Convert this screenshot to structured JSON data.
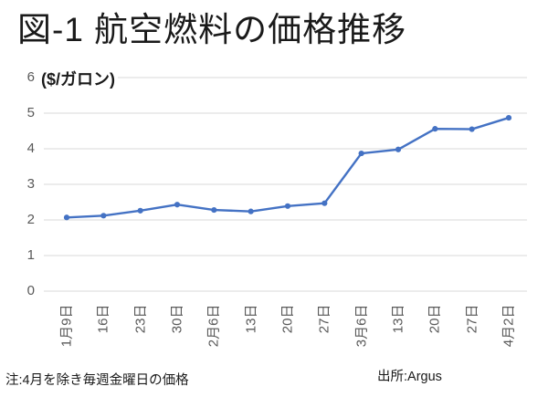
{
  "chart": {
    "title": "図-1 航空燃料の価格推移",
    "unit_label": "($/ガロン)",
    "note": "注:4月を除き毎週金曜日の価格",
    "source": "出所:Argus"
  },
  "chart_data": {
    "type": "line",
    "title": "図-1 航空燃料の価格推移",
    "xlabel": "",
    "ylabel": "($/ガロン)",
    "categories": [
      "1月9日",
      "16日",
      "23日",
      "30日",
      "2月6日",
      "13日",
      "20日",
      "27日",
      "3月6日",
      "13日",
      "20日",
      "27日",
      "4月2日"
    ],
    "values": [
      2.07,
      2.12,
      2.26,
      2.43,
      2.28,
      2.24,
      2.39,
      2.47,
      3.87,
      3.98,
      4.56,
      4.55,
      4.87
    ],
    "ylim": [
      0,
      6
    ],
    "yticks": [
      0,
      1,
      2,
      3,
      4,
      5,
      6
    ],
    "grid": true,
    "legend": false,
    "annotations": [
      "注:4月を除き毎週金曜日の価格",
      "出所:Argus"
    ],
    "colors": {
      "line": "#4472C4",
      "marker": "#4472C4",
      "gridline": "#D9D9D9",
      "axis_text": "#595959",
      "title_text": "#1a1a1a"
    }
  }
}
